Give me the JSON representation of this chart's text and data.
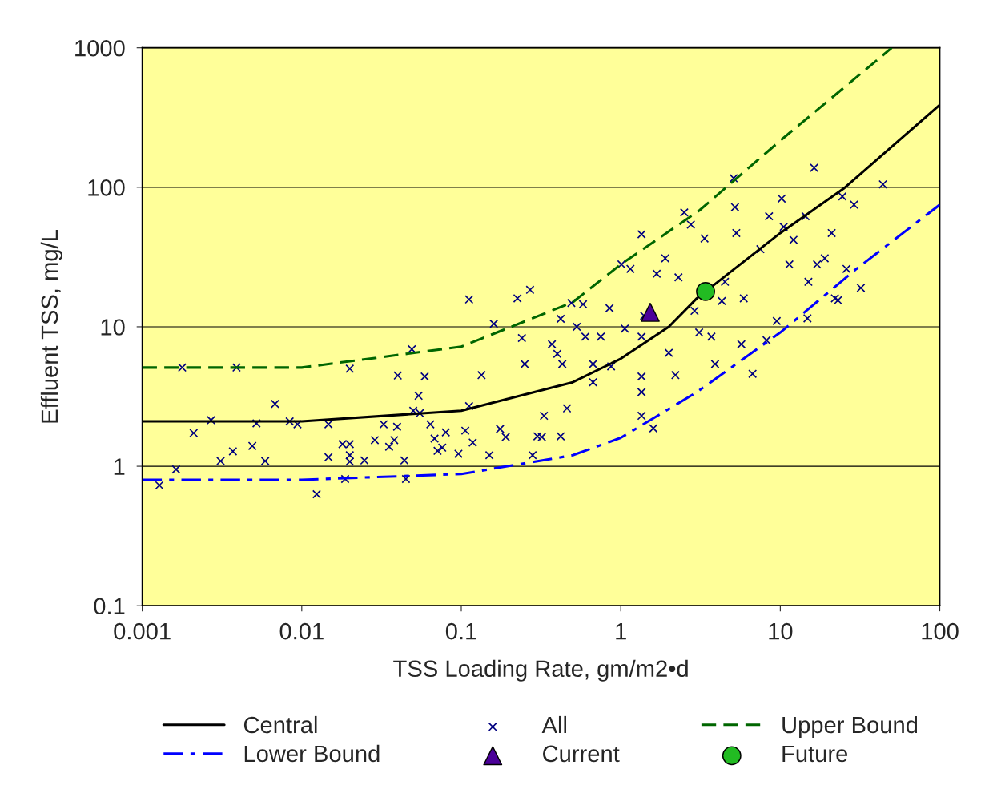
{
  "chart_data": {
    "type": "scatter",
    "xlabel": "TSS Loading Rate, gm/m2•d",
    "ylabel": "Effluent TSS, mg/L",
    "log": "xy",
    "xlim": [
      0.001,
      100
    ],
    "xticks": [
      0.001,
      0.01,
      0.1,
      1,
      10,
      100
    ],
    "ylim": [
      0.1,
      1000
    ],
    "yticks": [
      0.1,
      1,
      10,
      100,
      1000
    ],
    "grid": "y",
    "legend": "bottom",
    "series": [
      {
        "name": "Central",
        "type": "line",
        "color": "#000000",
        "line_style": "solid",
        "marker": "none",
        "x": [
          0.001,
          0.01,
          0.1,
          0.5,
          1,
          2,
          3,
          10,
          25,
          100
        ],
        "values": [
          2.1,
          2.1,
          2.5,
          4.0,
          5.9,
          10,
          16,
          47,
          98,
          390
        ]
      },
      {
        "name": "All",
        "color": "#000080",
        "marker": "cross",
        "x": [
          0.00128,
          0.00163,
          0.00178,
          0.0021,
          0.0027,
          0.0031,
          0.0037,
          0.0039,
          0.0049,
          0.0052,
          0.0059,
          0.0068,
          0.0084,
          0.0094,
          0.0124,
          0.0147,
          0.0147,
          0.018,
          0.0187,
          0.02,
          0.02,
          0.02,
          0.02,
          0.0247,
          0.0287,
          0.0326,
          0.0353,
          0.038,
          0.0396,
          0.04,
          0.044,
          0.045,
          0.049,
          0.05,
          0.054,
          0.055,
          0.059,
          0.064,
          0.068,
          0.071,
          0.076,
          0.08,
          0.096,
          0.106,
          0.112,
          0.112,
          0.118,
          0.134,
          0.15,
          0.16,
          0.175,
          0.19,
          0.225,
          0.24,
          0.25,
          0.27,
          0.28,
          0.3,
          0.32,
          0.33,
          0.37,
          0.4,
          0.42,
          0.43,
          0.46,
          0.42,
          0.49,
          0.53,
          0.58,
          0.6,
          0.67,
          0.67,
          0.75,
          0.85,
          0.87,
          1.01,
          1.06,
          1.15,
          1.35,
          1.4,
          1.35,
          1.35,
          1.35,
          1.35,
          1.6,
          1.68,
          1.9,
          2.0,
          2.2,
          2.3,
          2.5,
          2.75,
          2.9,
          3.1,
          3.35,
          3.7,
          3.9,
          4.3,
          4.5,
          5.1,
          5.2,
          5.3,
          5.7,
          5.9,
          6.7,
          7.5,
          8.5,
          9.5,
          10.2,
          10.5,
          11.4,
          12.1,
          14.4,
          14.8,
          16.3,
          17,
          19,
          21,
          23,
          24.5,
          26,
          29,
          32,
          44,
          22,
          8.2,
          15
        ],
        "values": [
          0.73,
          0.95,
          5.1,
          1.73,
          2.14,
          1.09,
          1.28,
          5.1,
          1.4,
          2.03,
          1.09,
          2.8,
          2.1,
          2.0,
          0.63,
          2.0,
          1.16,
          1.44,
          0.81,
          5.0,
          1.44,
          1.2,
          1.08,
          1.1,
          1.54,
          2.0,
          1.38,
          1.54,
          1.92,
          4.47,
          1.1,
          0.81,
          6.9,
          2.5,
          3.2,
          2.4,
          4.4,
          2.0,
          1.58,
          1.29,
          1.36,
          1.75,
          1.23,
          1.8,
          15.7,
          2.7,
          1.48,
          4.5,
          1.2,
          10.5,
          1.85,
          1.62,
          16,
          8.3,
          5.4,
          18.4,
          1.2,
          1.64,
          1.62,
          2.3,
          7.5,
          6.4,
          11.4,
          5.4,
          2.6,
          1.64,
          14.8,
          10,
          14.5,
          8.5,
          5.4,
          4.0,
          8.5,
          13.6,
          5.2,
          28,
          9.7,
          26,
          46,
          12,
          8.5,
          4.4,
          3.4,
          2.3,
          1.87,
          24,
          31,
          6.5,
          4.5,
          22.6,
          66,
          54,
          13,
          9.1,
          43,
          8.5,
          5.4,
          15.3,
          21,
          116,
          72,
          47,
          7.5,
          16,
          4.6,
          36,
          62,
          11,
          83,
          52,
          28,
          42,
          62,
          11.5,
          138,
          28,
          31,
          47,
          15.5,
          86,
          26,
          75,
          19,
          105,
          16,
          8.0,
          21
        ]
      },
      {
        "name": "Upper Bound",
        "type": "line",
        "color": "#006600",
        "line_style": "dashed",
        "marker": "none",
        "x": [
          0.001,
          0.01,
          0.1,
          0.5,
          1,
          3.1,
          10,
          50
        ],
        "values": [
          5.1,
          5.1,
          7.2,
          15,
          28,
          68,
          216,
          1000
        ]
      },
      {
        "name": "Lower Bound",
        "type": "line",
        "color": "#0000ff",
        "line_style": "dashdot",
        "marker": "none",
        "x": [
          0.001,
          0.01,
          0.1,
          0.5,
          1,
          3,
          10,
          30,
          100
        ],
        "values": [
          0.8,
          0.8,
          0.88,
          1.2,
          1.6,
          3.4,
          9.1,
          26,
          75
        ]
      },
      {
        "name": "Current",
        "type": "scatter",
        "color": "#4b0099",
        "marker": "triangle",
        "x": [
          1.53
        ],
        "values": [
          12.7
        ]
      },
      {
        "name": "Future",
        "type": "scatter",
        "color": "#22bb22",
        "marker": "circle",
        "x": [
          3.4
        ],
        "values": [
          17.9
        ]
      }
    ]
  }
}
